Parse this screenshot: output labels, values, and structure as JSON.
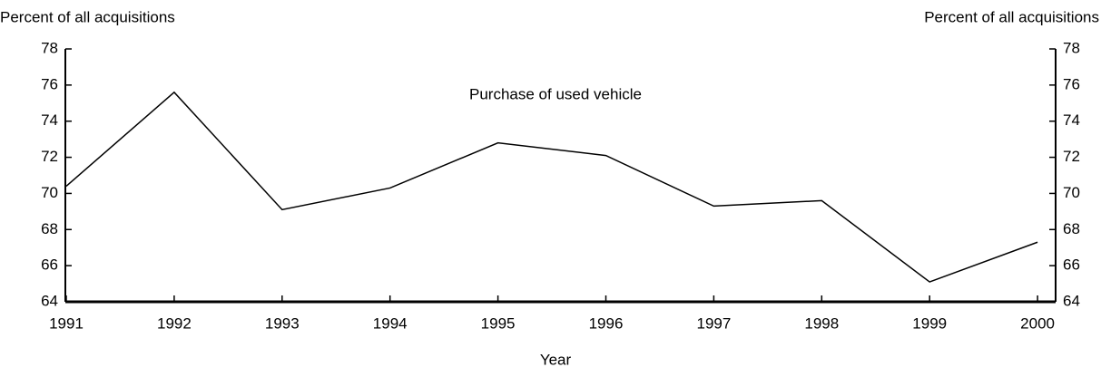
{
  "chart_data": {
    "type": "line",
    "y_label": "Percent of all acquisitions",
    "y2_label": "Percent of all acquisitions",
    "x_label": "Year",
    "annotation": "Purchase of used vehicle",
    "categories": [
      "1991",
      "1992",
      "1993",
      "1994",
      "1995",
      "1996",
      "1997",
      "1998",
      "1999",
      "2000"
    ],
    "series": [
      {
        "name": "Purchase of used vehicle",
        "color": "#000000",
        "values": [
          70.4,
          75.6,
          69.1,
          70.3,
          72.8,
          72.1,
          69.3,
          69.6,
          65.1,
          67.3
        ]
      }
    ],
    "ylim": [
      64,
      78
    ],
    "yticks": [
      64,
      66,
      68,
      70,
      72,
      74,
      76,
      78
    ],
    "y2lim": [
      64,
      78
    ],
    "y2ticks": [
      64,
      66,
      68,
      70,
      72,
      74,
      76,
      78
    ],
    "grid": false
  }
}
